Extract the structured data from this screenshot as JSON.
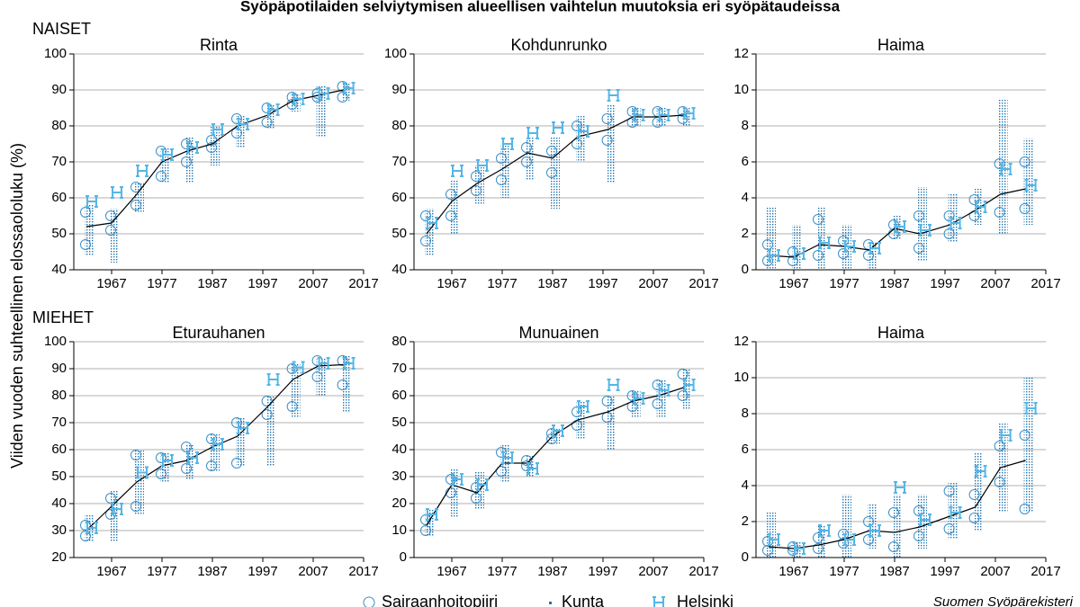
{
  "title": "Syöpäpotilaiden selviytymisen alueellisen vaihtelun muutoksia eri syöpätaudeissa",
  "ylabel": "Viiden vuoden suhteellinen elossaololuku (%)",
  "row_labels": [
    "NAISET",
    "MIEHET"
  ],
  "legend": {
    "district": "Sairaanhoitopiiri",
    "municipality": "Kunta",
    "helsinki": "Helsinki"
  },
  "colors": {
    "line": "#000000",
    "district": "#3d8fc6",
    "municipality": "#1f74b0",
    "helsinki": "#55b6e6"
  },
  "source": "Suomen Syöpärekisteri",
  "x": [
    1962,
    1967,
    1972,
    1977,
    1982,
    1987,
    1992,
    1998,
    2003,
    2008,
    2013
  ],
  "xlim": [
    1959.5,
    2017
  ],
  "xticks": [
    1967,
    1977,
    1987,
    1997,
    2007,
    2017
  ],
  "chart_data": [
    {
      "type": "line",
      "title": "Rinta",
      "ylim": [
        40,
        100
      ],
      "yticks": [
        40,
        50,
        60,
        70,
        80,
        90,
        100
      ],
      "values": [
        52,
        53,
        61,
        70,
        73,
        75,
        80,
        83,
        87,
        88.5,
        90
      ],
      "helsinki": [
        59,
        61.5,
        67.5,
        72,
        74,
        79,
        80.5,
        84.5,
        87.5,
        89,
        90.5
      ],
      "district": [
        [
          47,
          56
        ],
        [
          51,
          55
        ],
        [
          58,
          63
        ],
        [
          66,
          73
        ],
        [
          70,
          75
        ],
        [
          74,
          76
        ],
        [
          78,
          82
        ],
        [
          81,
          85
        ],
        [
          86,
          88
        ],
        [
          88,
          89
        ],
        [
          88,
          91
        ]
      ],
      "municipality": [
        [
          44,
          58
        ],
        [
          42,
          57
        ],
        [
          56,
          64
        ],
        [
          64,
          74
        ],
        [
          64,
          77
        ],
        [
          69,
          80
        ],
        [
          74,
          83
        ],
        [
          79,
          86
        ],
        [
          84,
          89
        ],
        [
          77,
          91
        ],
        [
          87,
          92
        ]
      ]
    },
    {
      "type": "line",
      "title": "Kohdunrunko",
      "ylim": [
        40,
        100
      ],
      "yticks": [
        40,
        50,
        60,
        70,
        80,
        90,
        100
      ],
      "values": [
        50,
        59,
        64,
        68,
        72.5,
        71,
        77,
        79,
        82.5,
        82.5,
        83
      ],
      "helsinki": [
        53,
        67.5,
        69,
        75,
        78,
        79.5,
        78.5,
        88.5,
        83,
        83,
        83.5
      ],
      "district": [
        [
          48,
          55
        ],
        [
          55,
          61
        ],
        [
          62,
          66
        ],
        [
          65,
          71
        ],
        [
          70,
          74
        ],
        [
          67,
          73
        ],
        [
          75,
          80
        ],
        [
          76,
          82
        ],
        [
          81,
          84
        ],
        [
          81,
          84
        ],
        [
          82,
          84
        ]
      ],
      "municipality": [
        [
          44,
          57
        ],
        [
          50,
          65
        ],
        [
          58,
          69
        ],
        [
          60,
          75
        ],
        [
          65,
          77
        ],
        [
          57,
          77
        ],
        [
          70,
          83
        ],
        [
          64,
          86
        ],
        [
          80,
          85
        ],
        [
          80,
          85
        ],
        [
          80,
          85
        ]
      ]
    },
    {
      "type": "line",
      "title": "Haima",
      "ylim": [
        0,
        12
      ],
      "yticks": [
        0,
        2,
        4,
        6,
        8,
        10,
        12
      ],
      "values": [
        0.8,
        0.7,
        1.4,
        1.3,
        1.1,
        2.3,
        2.0,
        2.5,
        3.3,
        4.2,
        4.5
      ],
      "helsinki": [
        0.8,
        0.9,
        1.5,
        1.3,
        1.2,
        2.4,
        2.2,
        2.6,
        3.5,
        5.6,
        4.7
      ],
      "district": [
        [
          0.5,
          1.4
        ],
        [
          0.5,
          1.0
        ],
        [
          0.8,
          2.8
        ],
        [
          0.9,
          1.6
        ],
        [
          0.8,
          1.4
        ],
        [
          2.0,
          2.5
        ],
        [
          1.2,
          3.0
        ],
        [
          2.0,
          3.0
        ],
        [
          3.0,
          3.9
        ],
        [
          3.2,
          5.9
        ],
        [
          3.4,
          6.0
        ]
      ],
      "municipality": [
        [
          0,
          3.5
        ],
        [
          0,
          2.5
        ],
        [
          0,
          3.5
        ],
        [
          0,
          2.5
        ],
        [
          0,
          1.5
        ],
        [
          1.7,
          3.0
        ],
        [
          0.5,
          4.6
        ],
        [
          1.5,
          4.2
        ],
        [
          2.5,
          4.5
        ],
        [
          2.0,
          9.5
        ],
        [
          2.5,
          7.3
        ]
      ]
    },
    {
      "type": "line",
      "title": "Eturauhanen",
      "ylim": [
        20,
        100
      ],
      "yticks": [
        20,
        30,
        40,
        50,
        60,
        70,
        80,
        90,
        100
      ],
      "values": [
        30,
        39,
        48,
        54,
        56,
        61,
        65,
        76,
        86,
        91,
        91.5
      ],
      "helsinki": [
        31,
        38,
        51.5,
        56,
        57,
        62,
        68,
        86,
        90.5,
        92,
        92
      ],
      "district": [
        [
          28,
          32
        ],
        [
          36,
          42
        ],
        [
          39,
          58
        ],
        [
          51,
          57
        ],
        [
          53,
          61
        ],
        [
          54,
          64
        ],
        [
          55,
          70
        ],
        [
          73,
          78
        ],
        [
          76,
          90
        ],
        [
          87,
          93
        ],
        [
          84,
          93
        ]
      ],
      "municipality": [
        [
          26,
          36
        ],
        [
          26,
          45
        ],
        [
          36,
          60
        ],
        [
          48,
          59
        ],
        [
          49,
          62
        ],
        [
          52,
          66
        ],
        [
          54,
          72
        ],
        [
          54,
          80
        ],
        [
          72,
          92
        ],
        [
          80,
          94
        ],
        [
          74,
          95
        ]
      ]
    },
    {
      "type": "line",
      "title": "Munuainen",
      "ylim": [
        0,
        80
      ],
      "yticks": [
        0,
        10,
        20,
        30,
        40,
        50,
        60,
        70,
        80
      ],
      "values": [
        12,
        27,
        24,
        35,
        35,
        45,
        51,
        54,
        58,
        60,
        63
      ],
      "helsinki": [
        16,
        29,
        27,
        37,
        33,
        47,
        56,
        64,
        59,
        62,
        64
      ],
      "district": [
        [
          10,
          14
        ],
        [
          24,
          29
        ],
        [
          22,
          26
        ],
        [
          32,
          39
        ],
        [
          34,
          36
        ],
        [
          44,
          46
        ],
        [
          49,
          54
        ],
        [
          52,
          58
        ],
        [
          56,
          60
        ],
        [
          57,
          64
        ],
        [
          60,
          68
        ]
      ],
      "municipality": [
        [
          8,
          18
        ],
        [
          15,
          33
        ],
        [
          18,
          32
        ],
        [
          28,
          42
        ],
        [
          30,
          38
        ],
        [
          42,
          48
        ],
        [
          44,
          58
        ],
        [
          40,
          60
        ],
        [
          52,
          62
        ],
        [
          52,
          66
        ],
        [
          55,
          70
        ]
      ]
    },
    {
      "type": "line",
      "title": "Haima",
      "ylim": [
        0,
        12
      ],
      "yticks": [
        0,
        2,
        4,
        6,
        8,
        10,
        12
      ],
      "values": [
        0.6,
        0.5,
        0.7,
        1.0,
        1.5,
        1.4,
        1.7,
        2.3,
        2.8,
        5.0,
        5.4
      ],
      "helsinki": [
        1.0,
        0.5,
        1.5,
        1.0,
        1.5,
        3.9,
        2.1,
        2.5,
        4.8,
        6.8,
        8.3
      ],
      "district": [
        [
          0.4,
          0.9
        ],
        [
          0.4,
          0.6
        ],
        [
          0.5,
          1.1
        ],
        [
          0.8,
          1.3
        ],
        [
          1.0,
          2.0
        ],
        [
          0.6,
          2.5
        ],
        [
          1.2,
          2.6
        ],
        [
          1.6,
          3.7
        ],
        [
          2.2,
          3.5
        ],
        [
          4.2,
          6.2
        ],
        [
          2.7,
          6.8
        ]
      ],
      "municipality": [
        [
          0,
          2.5
        ],
        [
          0,
          0.9
        ],
        [
          0,
          1.8
        ],
        [
          0,
          3.5
        ],
        [
          0.5,
          3.0
        ],
        [
          0,
          3.5
        ],
        [
          0.5,
          3.5
        ],
        [
          1,
          4.2
        ],
        [
          1.5,
          5.8
        ],
        [
          2.5,
          7.5
        ],
        [
          2.5,
          10
        ]
      ]
    }
  ]
}
